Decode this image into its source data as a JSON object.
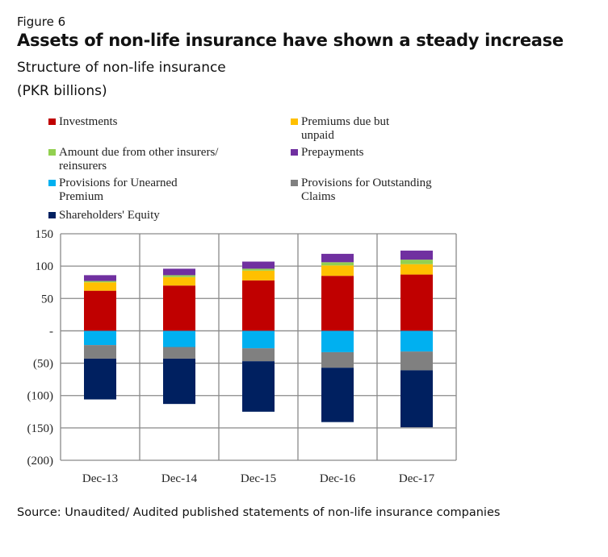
{
  "figure_label": "Figure 6",
  "title": "Assets of non-life insurance have shown a steady increase",
  "subtitle": "Structure of non-life insurance",
  "unit": "(PKR billions)",
  "source": "Source: Unaudited/ Audited published statements of non-life insurance companies",
  "chart_data": {
    "type": "bar",
    "stacked": true,
    "categories": [
      "Dec-13",
      "Dec-14",
      "Dec-15",
      "Dec-16",
      "Dec-17"
    ],
    "ylim": [
      -200,
      150
    ],
    "yticks": [
      150,
      100,
      50,
      0,
      -50,
      -100,
      -150,
      -200
    ],
    "ytick_labels": [
      "150",
      "100",
      "50",
      "-",
      "(50)",
      "(100)",
      "(150)",
      "(200)"
    ],
    "grid": true,
    "legend_placement": "top",
    "series": [
      {
        "name": "Investments",
        "color": "#c00000",
        "values": [
          62,
          70,
          78,
          85,
          87
        ]
      },
      {
        "name": "Premiums due but unpaid",
        "color": "#ffc000",
        "values": [
          13,
          13,
          15,
          16,
          16
        ]
      },
      {
        "name": "Amount due from other insurers/ reinsurers",
        "color": "#92d050",
        "values": [
          2,
          3,
          3,
          5,
          7
        ]
      },
      {
        "name": "Prepayments",
        "color": "#7030a0",
        "values": [
          9,
          10,
          11,
          13,
          14
        ]
      },
      {
        "name": "Provisions for Unearned Premium",
        "color": "#00b0f0",
        "values": [
          -22,
          -25,
          -27,
          -33,
          -32
        ]
      },
      {
        "name": "Provisions for Outstanding Claims",
        "color": "#808080",
        "values": [
          -21,
          -18,
          -20,
          -24,
          -29
        ]
      },
      {
        "name": "Shareholders' Equity",
        "color": "#002060",
        "values": [
          -63,
          -70,
          -78,
          -84,
          -88
        ]
      }
    ]
  }
}
